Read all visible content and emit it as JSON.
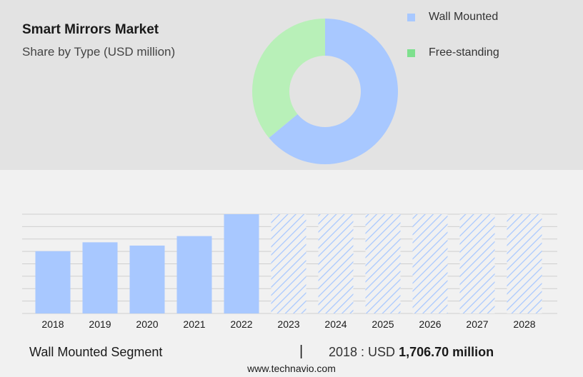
{
  "header": {
    "title": "Smart Mirrors Market",
    "subtitle": "Share by Type (USD million)"
  },
  "legend": [
    {
      "label": "Wall Mounted",
      "color": "#a8c8ff"
    },
    {
      "label": "Free-standing",
      "color": "#7ee08e"
    }
  ],
  "footer": {
    "segment": "Wall Mounted Segment",
    "divider": "|",
    "year_label": "2018 : USD",
    "value": "1,706.70 million",
    "website": "www.technavio.com"
  },
  "chart_data": [
    {
      "type": "pie",
      "style": "donut",
      "categories": [
        "Wall Mounted",
        "Free-standing"
      ],
      "values": [
        64,
        36
      ],
      "colors": [
        "#a8c8ff",
        "#b8f0b8"
      ]
    },
    {
      "type": "bar",
      "categories": [
        "2018",
        "2019",
        "2020",
        "2021",
        "2022",
        "2023",
        "2024",
        "2025",
        "2026",
        "2027",
        "2028"
      ],
      "values": [
        1706.7,
        1950,
        1860,
        2120,
        2720,
        null,
        null,
        null,
        null,
        null,
        null
      ],
      "forecast_categories": [
        "2023",
        "2024",
        "2025",
        "2026",
        "2027",
        "2028"
      ],
      "ylim": [
        0,
        2720
      ],
      "grid": true,
      "bar_color": "#a8c8ff",
      "forecast_style": "hatched"
    }
  ]
}
